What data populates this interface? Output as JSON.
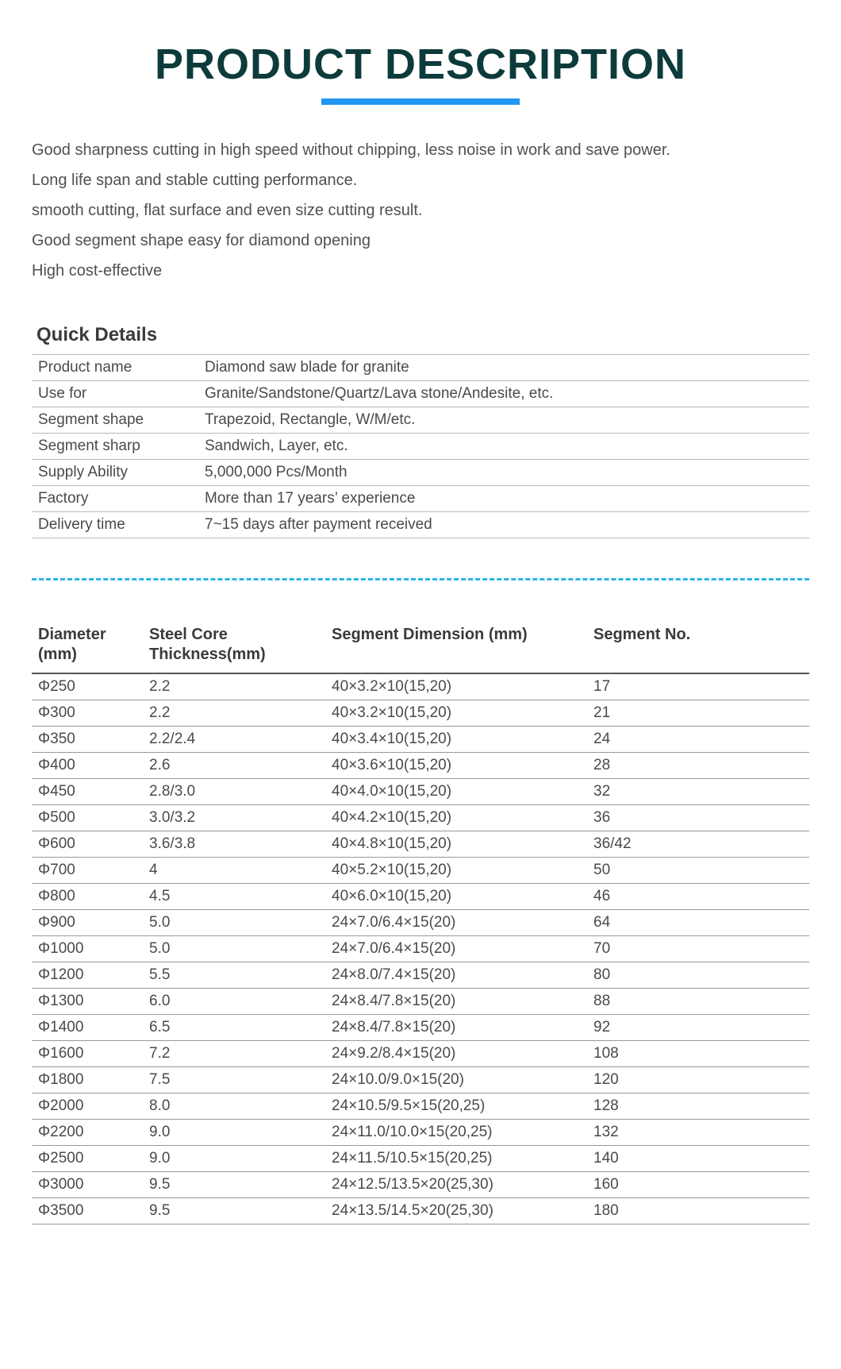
{
  "title": "PRODUCT DESCRIPTION",
  "description_lines": [
    "Good sharpness cutting in high speed without chipping, less noise in work and save power.",
    "Long life span and stable cutting performance.",
    "smooth cutting, flat surface and even size cutting result.",
    "Good segment shape easy for diamond opening",
    "High cost-effective"
  ],
  "quick_details": {
    "heading": "Quick Details",
    "rows": [
      {
        "label": "Product name",
        "value": "Diamond saw blade for granite"
      },
      {
        "label": "Use for",
        "value": "Granite/Sandstone/Quartz/Lava stone/Andesite, etc."
      },
      {
        "label": "Segment shape",
        "value": "Trapezoid, Rectangle, W/M/etc."
      },
      {
        "label": "Segment sharp",
        "value": "Sandwich, Layer, etc."
      },
      {
        "label": "Supply Ability",
        "value": "5,000,000 Pcs/Month"
      },
      {
        "label": "Factory",
        "value": "More than 17 years’ experience"
      },
      {
        "label": "Delivery time",
        "value": "7~15 days after payment received"
      }
    ]
  },
  "spec_table": {
    "columns": [
      "Diameter (mm)",
      "Steel Core Thickness(mm)",
      "Segment Dimension  (mm)",
      "Segment No."
    ],
    "rows": [
      [
        "Φ250",
        "2.2",
        "40×3.2×10(15,20)",
        "17"
      ],
      [
        "Φ300",
        "2.2",
        "40×3.2×10(15,20)",
        "21"
      ],
      [
        "Φ350",
        "2.2/2.4",
        "40×3.4×10(15,20)",
        "24"
      ],
      [
        "Φ400",
        "2.6",
        "40×3.6×10(15,20)",
        "28"
      ],
      [
        "Φ450",
        "2.8/3.0",
        "40×4.0×10(15,20)",
        "32"
      ],
      [
        "Φ500",
        "3.0/3.2",
        "40×4.2×10(15,20)",
        "36"
      ],
      [
        "Φ600",
        "3.6/3.8",
        "40×4.8×10(15,20)",
        "36/42"
      ],
      [
        "Φ700",
        "4",
        "40×5.2×10(15,20)",
        "50"
      ],
      [
        "Φ800",
        "4.5",
        "40×6.0×10(15,20)",
        "46"
      ],
      [
        "Φ900",
        "5.0",
        "24×7.0/6.4×15(20)",
        "64"
      ],
      [
        "Φ1000",
        "5.0",
        "24×7.0/6.4×15(20)",
        "70"
      ],
      [
        "Φ1200",
        "5.5",
        "24×8.0/7.4×15(20)",
        "80"
      ],
      [
        "Φ1300",
        "6.0",
        "24×8.4/7.8×15(20)",
        "88"
      ],
      [
        "Φ1400",
        "6.5",
        "24×8.4/7.8×15(20)",
        "92"
      ],
      [
        "Φ1600",
        "7.2",
        "24×9.2/8.4×15(20)",
        "108"
      ],
      [
        "Φ1800",
        "7.5",
        "24×10.0/9.0×15(20)",
        "120"
      ],
      [
        "Φ2000",
        "8.0",
        "24×10.5/9.5×15(20,25)",
        "128"
      ],
      [
        "Φ2200",
        "9.0",
        "24×11.0/10.0×15(20,25)",
        "132"
      ],
      [
        "Φ2500",
        "9.0",
        "24×11.5/10.5×15(20,25)",
        "140"
      ],
      [
        "Φ3000",
        "9.5",
        "24×12.5/13.5×20(25,30)",
        "160"
      ],
      [
        "Φ3500",
        "9.5",
        "24×13.5/14.5×20(25,30)",
        "180"
      ]
    ]
  },
  "style": {
    "title_color": "#0d3b3b",
    "underline_color": "#2196f3",
    "dashed_color": "#29b6e8",
    "text_color": "#4a4a4a",
    "border_color": "#b8b8b8",
    "background": "#ffffff"
  }
}
